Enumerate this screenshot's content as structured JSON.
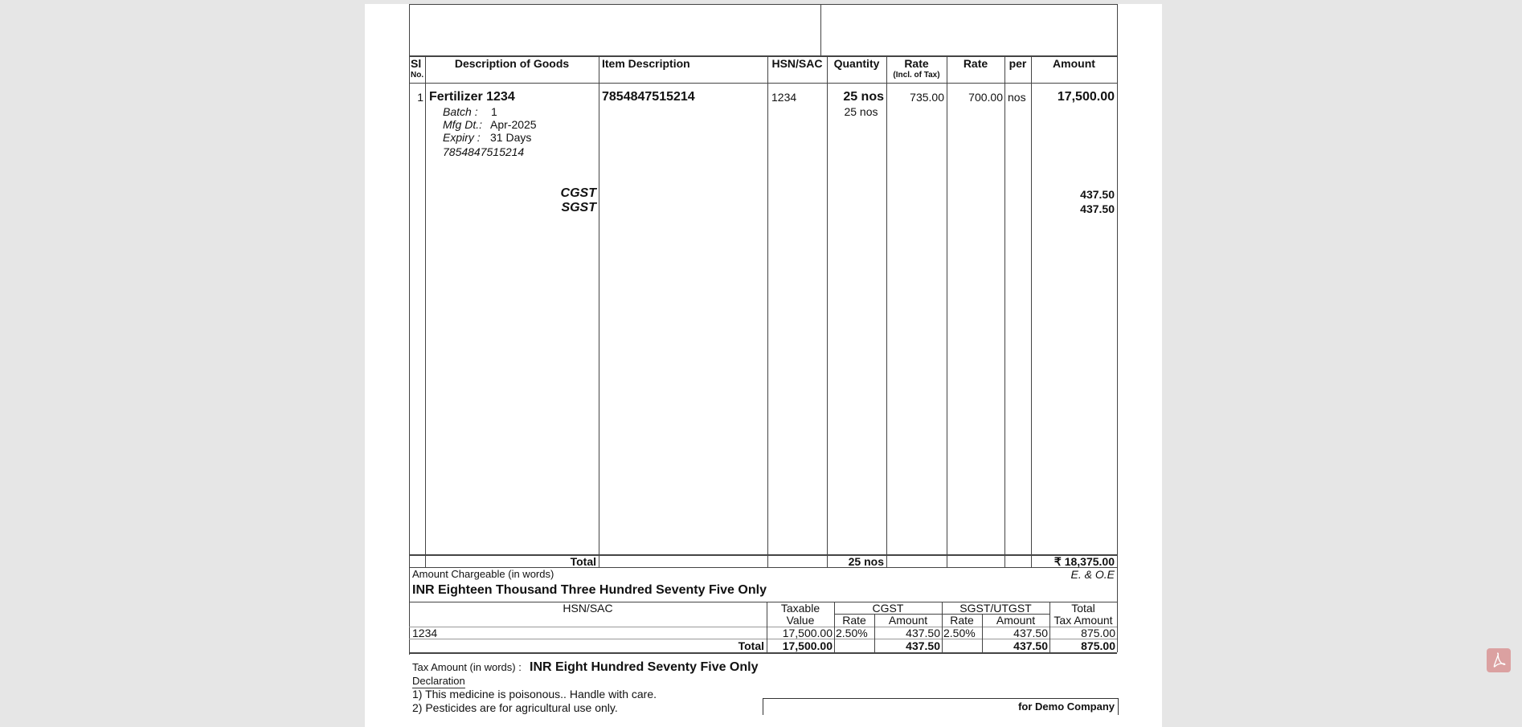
{
  "headers": {
    "sl": "Sl",
    "sl_no": "No.",
    "desc": "Description of Goods",
    "item_desc": "Item Description",
    "hsn": "HSN/SAC",
    "qty": "Quantity",
    "rate_incl": "Rate",
    "rate_incl_sub": "(Incl. of Tax)",
    "rate": "Rate",
    "per": "per",
    "amount": "Amount"
  },
  "item": {
    "sl": "1",
    "name": "Fertilizer 1234",
    "item_description": "7854847515214",
    "hsn": "1234",
    "qty": "25 nos",
    "qty_alt": "25 nos",
    "rate_incl": "735.00",
    "rate": "700.00",
    "per": "nos",
    "amount": "17,500.00",
    "batch_label": "Batch  :",
    "batch": "1",
    "mfg_label": "Mfg Dt.:",
    "mfg": "Apr-2025",
    "expiry_label": "Expiry :",
    "expiry": "31 Days",
    "barcode": "7854847515214"
  },
  "taxes": [
    {
      "label": "CGST",
      "amount": "437.50"
    },
    {
      "label": "SGST",
      "amount": "437.50"
    }
  ],
  "total": {
    "label": "Total",
    "qty": "25 nos",
    "amount": "₹ 18,375.00"
  },
  "amount_words": {
    "label": "Amount Chargeable (in words)",
    "eoe": "E. & O.E",
    "value": "INR Eighteen Thousand Three Hundred Seventy Five Only"
  },
  "tax_table": {
    "headers": {
      "hsn": "HSN/SAC",
      "taxable": "Taxable",
      "taxable2": "Value",
      "cgst": "CGST",
      "sgst": "SGST/UTGST",
      "rate": "Rate",
      "amount": "Amount",
      "total": "Total",
      "total2": "Tax Amount"
    },
    "row": {
      "hsn": "1234",
      "taxable": "17,500.00",
      "cgst_rate": "2.50%",
      "cgst_amt": "437.50",
      "sgst_rate": "2.50%",
      "sgst_amt": "437.50",
      "total": "875.00"
    },
    "totals": {
      "label": "Total",
      "taxable": "17,500.00",
      "cgst_amt": "437.50",
      "sgst_amt": "437.50",
      "total": "875.00"
    }
  },
  "tax_words": {
    "label": "Tax Amount (in words)  :",
    "value": "INR Eight Hundred Seventy Five Only"
  },
  "declaration": {
    "title": "Declaration",
    "lines": [
      "1) This medicine is poisonous.. Handle with care.",
      "2) Pesticides are for agricultural use only."
    ]
  },
  "signature": {
    "company": "for Demo Company"
  },
  "colors": {
    "background": "#e6e6e6",
    "pdf_badge": "#dba1a1"
  },
  "icons": {
    "viewer": "pdf-icon"
  }
}
